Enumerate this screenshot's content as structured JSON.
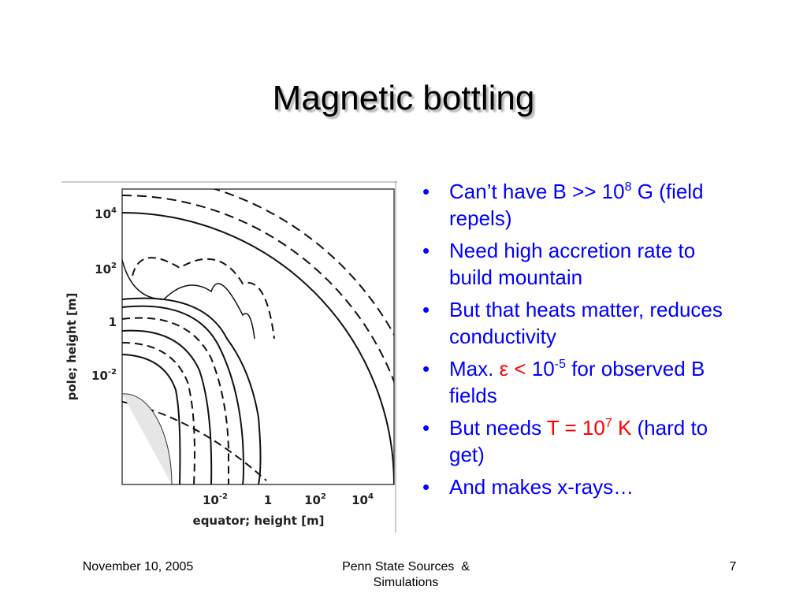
{
  "title": "Magnetic bottling",
  "bullets": [
    {
      "runs": [
        {
          "text": "Can’t have B >> 10"
        },
        {
          "text": "8",
          "sup": true
        },
        {
          "text": " G (field repels)"
        }
      ]
    },
    {
      "runs": [
        {
          "text": "Need high accretion rate to build mountain"
        }
      ]
    },
    {
      "runs": [
        {
          "text": "But that heats matter, reduces conductivity"
        }
      ]
    },
    {
      "runs": [
        {
          "text": "Max. "
        },
        {
          "text": "ε < ",
          "color": "#ff0000"
        },
        {
          "text": "10"
        },
        {
          "text": "-5",
          "sup": true
        },
        {
          "text": " for observed B fields"
        }
      ]
    },
    {
      "runs": [
        {
          "text": "But needs "
        },
        {
          "text": "T = 10",
          "color": "#ff0000"
        },
        {
          "text": "7",
          "sup": true,
          "color": "#ff0000"
        },
        {
          "text": " K",
          "color": "#ff0000"
        },
        {
          "text": " (hard to get)"
        }
      ]
    },
    {
      "runs": [
        {
          "text": "And makes x-rays…"
        }
      ]
    }
  ],
  "figure": {
    "y_label": "pole; height [m]",
    "x_label": "equator; height [m]",
    "y_ticks": [
      {
        "base": "10",
        "exp": "4"
      },
      {
        "base": "10",
        "exp": "2"
      },
      {
        "base": "1"
      },
      {
        "base": "10",
        "exp": "-2"
      }
    ],
    "x_ticks": [
      {
        "base": "10",
        "exp": "-2"
      },
      {
        "base": "1"
      },
      {
        "base": "10",
        "exp": "2"
      },
      {
        "base": "10",
        "exp": "4"
      }
    ]
  },
  "footer": {
    "date": "November 10, 2005",
    "center": "Penn State Sources  & Simulations",
    "page": "7"
  }
}
